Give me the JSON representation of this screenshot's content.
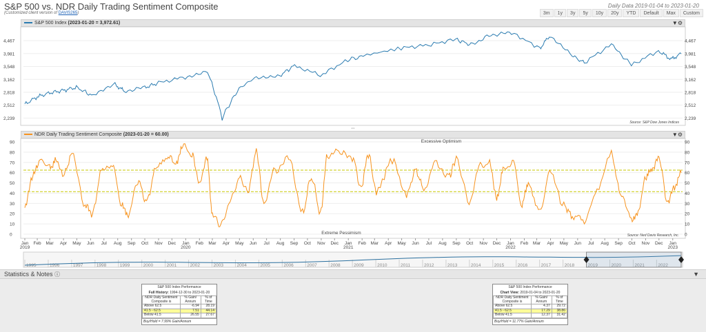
{
  "title": "S&P 500 vs. NDR Daily Trading Sentiment Composite",
  "subtitle_prefix": "(Customized client version of ",
  "subtitle_link": "DAVIS265",
  "subtitle_suffix": ")",
  "date_info": "Daily Data 2019-01-04 to 2023-01-20",
  "range_buttons": [
    "3m",
    "1y",
    "3y",
    "5y",
    "10y",
    "20y",
    "YTD",
    "Default",
    "Max",
    "Custom"
  ],
  "colors": {
    "spx": "#2a7bb0",
    "ndr": "#f7931e",
    "threshold": "#c9c900",
    "nav": "#2a6f9e"
  },
  "panels": {
    "spx_label": "S&P 500 Index",
    "spx_value": "(2023-01-20 = 3,972.61)",
    "spx_source": "Source:  S&P Dow Jones Indices",
    "ndr_label": "NDR Daily Trading Sentiment Composite",
    "ndr_value": "(2023-01-20 = 60.00)",
    "ndr_source": "Source:  Ned Davis Research, Inc.",
    "excessive": "Excessive Optimism",
    "extreme": "Extreme Pessimism"
  },
  "stats": {
    "heading": "Statistics & Notes",
    "left": {
      "title": "S&P 500 Index Performance",
      "period_label": "Full History:",
      "period": "1994-12-30 to 2023-01-20",
      "col1": "NDR Daily Sentiment Composite is",
      "col2": "% Gain/ Annum",
      "col3": "% of Time",
      "rows": [
        {
          "label": "Above 62.5",
          "gain": "-6.94",
          "time": "28.19"
        },
        {
          "label": "41.5 - 62.5",
          "gain": "7.51",
          "time": "44.14"
        },
        {
          "label": "Below 41.5",
          "gain": "26.55",
          "time": "27.67"
        }
      ],
      "footer": "Buy/Hold = 7.99% Gain/Annum"
    },
    "right": {
      "title": "S&P 500 Index Performance",
      "period_label": "Chart View:",
      "period": "2019-01-04 to 2023-01-20",
      "col1": "NDR Daily Sentiment Composite is",
      "col2": "% Gain/ Annum",
      "col3": "% of Time",
      "rows": [
        {
          "label": "Above 62.5",
          "gain": "4.37",
          "time": "29.72"
        },
        {
          "label": "41.5 - 62.5",
          "gain": "17.29",
          "time": "38.86"
        },
        {
          "label": "Below 41.5",
          "gain": "12.37",
          "time": "31.42"
        }
      ],
      "footer": "Buy/Hold = 11.77% Gain/Annum"
    }
  },
  "chart_data": [
    {
      "type": "line",
      "name": "S&P 500 Index",
      "scale": "log",
      "ylim": [
        2150,
        4900
      ],
      "yticks": [
        "2,239",
        "2,512",
        "2,818",
        "3,162",
        "3,548",
        "3,981",
        "4,467"
      ],
      "xlim": [
        "2019-01-04",
        "2023-01-20"
      ],
      "points": [
        [
          "2019-01-04",
          2532
        ],
        [
          "2019-02-01",
          2706
        ],
        [
          "2019-03-01",
          2803
        ],
        [
          "2019-04-01",
          2867
        ],
        [
          "2019-04-30",
          2945
        ],
        [
          "2019-06-03",
          2744
        ],
        [
          "2019-07-26",
          3025
        ],
        [
          "2019-08-15",
          2847
        ],
        [
          "2019-10-01",
          2940
        ],
        [
          "2019-11-01",
          3066
        ],
        [
          "2019-12-31",
          3230
        ],
        [
          "2020-02-19",
          3386
        ],
        [
          "2020-03-23",
          2237
        ],
        [
          "2020-04-30",
          2912
        ],
        [
          "2020-06-08",
          3232
        ],
        [
          "2020-07-31",
          3271
        ],
        [
          "2020-09-02",
          3580
        ],
        [
          "2020-10-30",
          3270
        ],
        [
          "2020-12-31",
          3756
        ],
        [
          "2021-02-12",
          3934
        ],
        [
          "2021-04-30",
          4181
        ],
        [
          "2021-06-30",
          4297
        ],
        [
          "2021-08-31",
          4523
        ],
        [
          "2021-10-04",
          4300
        ],
        [
          "2021-11-18",
          4704
        ],
        [
          "2022-01-03",
          4796
        ],
        [
          "2022-03-08",
          4170
        ],
        [
          "2022-03-29",
          4631
        ],
        [
          "2022-05-20",
          3901
        ],
        [
          "2022-06-16",
          3667
        ],
        [
          "2022-08-16",
          4305
        ],
        [
          "2022-09-30",
          3585
        ],
        [
          "2022-11-30",
          4080
        ],
        [
          "2022-12-28",
          3783
        ],
        [
          "2023-01-20",
          3972
        ]
      ]
    },
    {
      "type": "line",
      "name": "NDR Daily Trading Sentiment Composite",
      "ylim": [
        0,
        90
      ],
      "yticks": [
        0,
        10,
        20,
        30,
        40,
        50,
        60,
        70,
        80,
        90
      ],
      "thresholds": [
        62.5,
        41.5
      ],
      "xlim": [
        "2019-01-04",
        "2023-01-20"
      ],
      "x_month_labels": [
        "Jan",
        "Feb",
        "Mar",
        "Apr",
        "May",
        "Jun",
        "Jul",
        "Aug",
        "Sep",
        "Oct",
        "Nov",
        "Dec"
      ],
      "x_year_labels": [
        "2019",
        "2020",
        "2021",
        "2022",
        "2023"
      ],
      "points": [
        [
          "2019-01-04",
          25
        ],
        [
          "2019-01-20",
          55
        ],
        [
          "2019-02-05",
          70
        ],
        [
          "2019-03-01",
          64
        ],
        [
          "2019-03-15",
          72
        ],
        [
          "2019-04-01",
          58
        ],
        [
          "2019-04-20",
          77
        ],
        [
          "2019-05-20",
          28
        ],
        [
          "2019-06-05",
          20
        ],
        [
          "2019-06-25",
          60
        ],
        [
          "2019-07-20",
          66
        ],
        [
          "2019-08-10",
          30
        ],
        [
          "2019-08-25",
          18
        ],
        [
          "2019-09-15",
          52
        ],
        [
          "2019-10-05",
          32
        ],
        [
          "2019-10-25",
          62
        ],
        [
          "2019-11-20",
          76
        ],
        [
          "2019-12-10",
          70
        ],
        [
          "2019-12-25",
          86
        ],
        [
          "2020-01-15",
          78
        ],
        [
          "2020-02-01",
          50
        ],
        [
          "2020-02-18",
          74
        ],
        [
          "2020-03-01",
          20
        ],
        [
          "2020-03-20",
          8
        ],
        [
          "2020-04-10",
          32
        ],
        [
          "2020-05-01",
          55
        ],
        [
          "2020-05-20",
          42
        ],
        [
          "2020-06-08",
          80
        ],
        [
          "2020-06-25",
          30
        ],
        [
          "2020-07-20",
          62
        ],
        [
          "2020-08-20",
          74
        ],
        [
          "2020-09-20",
          22
        ],
        [
          "2020-10-10",
          55
        ],
        [
          "2020-10-30",
          22
        ],
        [
          "2020-11-15",
          76
        ],
        [
          "2020-12-10",
          80
        ],
        [
          "2021-01-10",
          74
        ],
        [
          "2021-01-30",
          46
        ],
        [
          "2021-02-15",
          78
        ],
        [
          "2021-03-05",
          42
        ],
        [
          "2021-04-10",
          72
        ],
        [
          "2021-05-12",
          38
        ],
        [
          "2021-06-01",
          62
        ],
        [
          "2021-06-20",
          45
        ],
        [
          "2021-07-15",
          70
        ],
        [
          "2021-08-15",
          56
        ],
        [
          "2021-09-01",
          73
        ],
        [
          "2021-09-30",
          32
        ],
        [
          "2021-10-25",
          66
        ],
        [
          "2021-11-15",
          70
        ],
        [
          "2021-12-01",
          34
        ],
        [
          "2021-12-15",
          62
        ],
        [
          "2022-01-05",
          70
        ],
        [
          "2022-01-27",
          30
        ],
        [
          "2022-02-10",
          50
        ],
        [
          "2022-03-08",
          22
        ],
        [
          "2022-03-30",
          62
        ],
        [
          "2022-05-01",
          28
        ],
        [
          "2022-05-20",
          18
        ],
        [
          "2022-06-16",
          14
        ],
        [
          "2022-07-10",
          40
        ],
        [
          "2022-08-16",
          78
        ],
        [
          "2022-09-05",
          40
        ],
        [
          "2022-09-30",
          14
        ],
        [
          "2022-10-15",
          22
        ],
        [
          "2022-11-01",
          55
        ],
        [
          "2022-11-15",
          64
        ],
        [
          "2022-12-01",
          74
        ],
        [
          "2022-12-20",
          32
        ],
        [
          "2023-01-05",
          45
        ],
        [
          "2023-01-20",
          60
        ]
      ]
    }
  ],
  "navigator": {
    "years": [
      "1995",
      "1996",
      "1997",
      "1998",
      "1999",
      "2000",
      "2001",
      "2002",
      "2003",
      "2004",
      "2005",
      "2006",
      "2007",
      "2008",
      "2009",
      "2010",
      "2011",
      "2012",
      "2013",
      "2014",
      "2015",
      "2016",
      "2017",
      "2018",
      "2019",
      "2020",
      "2021",
      "2022"
    ]
  }
}
